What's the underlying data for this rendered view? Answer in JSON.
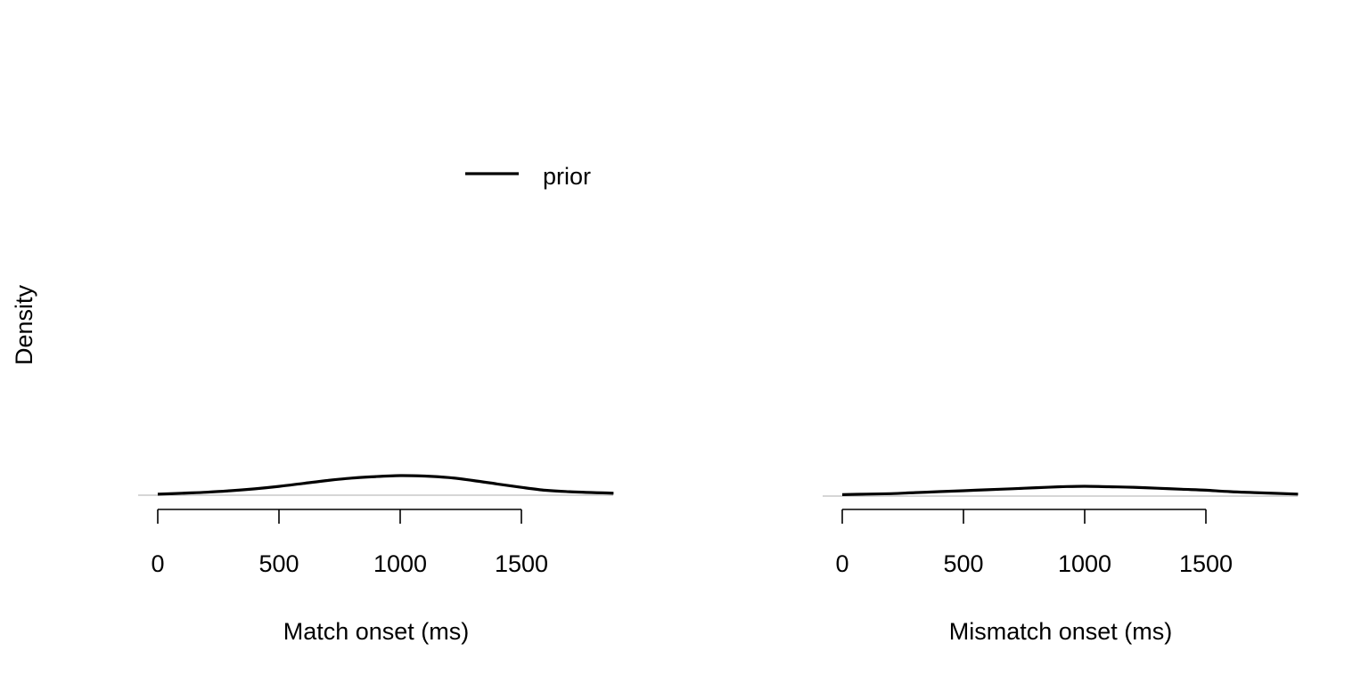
{
  "ylabel": "Density",
  "legend": {
    "label": "prior",
    "placement": "top-left of first panel"
  },
  "colors": {
    "curve": "#000000",
    "baseline": "#bebebe",
    "axis": "#000000"
  },
  "chart_data": [
    {
      "type": "line",
      "xlabel": "Match onset (ms)",
      "ylabel": "Density",
      "xlim": [
        0,
        1880
      ],
      "ylim": [
        0,
        0.005
      ],
      "xticks": [
        0,
        500,
        1000,
        1500
      ],
      "xtick_labels": [
        "0",
        "500",
        "1000",
        "1500"
      ],
      "grid": false,
      "series": [
        {
          "name": "prior",
          "x": [
            0,
            100,
            200,
            300,
            400,
            500,
            600,
            700,
            800,
            900,
            1000,
            1100,
            1200,
            1300,
            1400,
            1500,
            1600,
            1700,
            1880
          ],
          "y": [
            2e-05,
            4e-05,
            6e-05,
            9e-05,
            0.00013,
            0.00018,
            0.00024,
            0.0003,
            0.00035,
            0.00038,
            0.0004,
            0.00039,
            0.00036,
            0.0003,
            0.00023,
            0.00016,
            0.0001,
            7e-05,
            4e-05
          ]
        }
      ]
    },
    {
      "type": "line",
      "xlabel": "Mismatch onset (ms)",
      "ylabel": "Density",
      "xlim": [
        0,
        1880
      ],
      "ylim": [
        0,
        0.005
      ],
      "xticks": [
        0,
        500,
        1000,
        1500
      ],
      "xtick_labels": [
        "0",
        "500",
        "1000",
        "1500"
      ],
      "grid": false,
      "series": [
        {
          "name": "prior",
          "x": [
            0,
            100,
            200,
            300,
            400,
            500,
            600,
            700,
            800,
            900,
            1000,
            1100,
            1200,
            1300,
            1400,
            1500,
            1600,
            1700,
            1880
          ],
          "y": [
            3e-05,
            4e-05,
            5e-05,
            7e-05,
            9e-05,
            0.00011,
            0.00013,
            0.00015,
            0.00017,
            0.00019,
            0.0002,
            0.00019,
            0.00018,
            0.00016,
            0.00014,
            0.00012,
            9e-05,
            7e-05,
            4e-05
          ]
        }
      ]
    }
  ]
}
